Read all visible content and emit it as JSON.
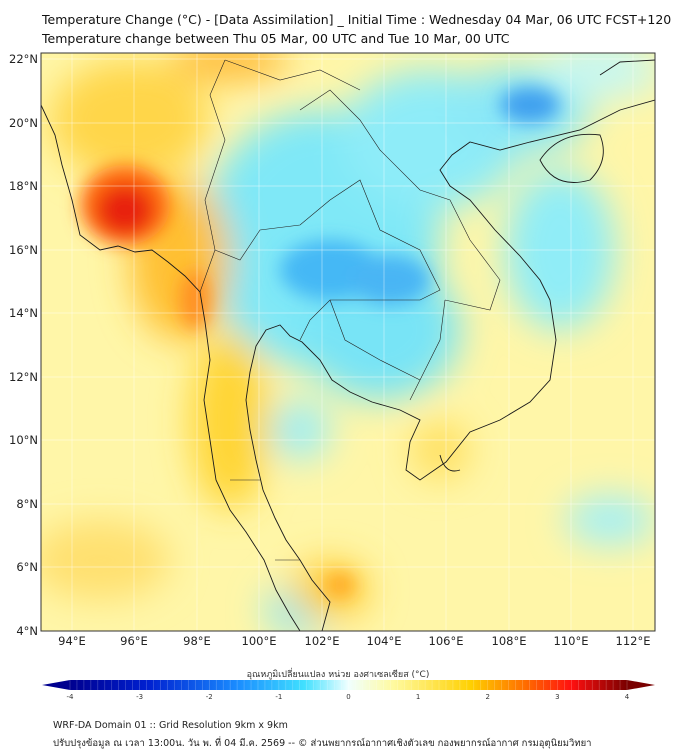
{
  "header": {
    "title_line1": "Temperature Change (°C) - [Data Assimilation] _ Initial Time : Wednesday 04 Mar, 06 UTC FCST+120",
    "title_line2": "Temperature change between Thu 05 Mar, 00 UTC and Tue 10 Mar, 00 UTC"
  },
  "map": {
    "lat_labels": [
      "22°N",
      "20°N",
      "18°N",
      "16°N",
      "14°N",
      "12°N",
      "10°N",
      "8°N",
      "6°N",
      "4°N"
    ],
    "lat_values": [
      22,
      20,
      18,
      16,
      14,
      12,
      10,
      8,
      6,
      4
    ],
    "lon_labels": [
      "94°E",
      "96°E",
      "98°E",
      "100°E",
      "102°E",
      "104°E",
      "106°E",
      "108°E",
      "110°E",
      "112°E"
    ],
    "lon_values": [
      94,
      96,
      98,
      100,
      102,
      104,
      106,
      108,
      110,
      112
    ],
    "field_colors": {
      "cold": "#3fa9f5",
      "cool": "#5fe3f5",
      "neutral": "#fff7b0",
      "warm": "#ffd21a",
      "hot": "#e82a10"
    }
  },
  "colorbar": {
    "label": "อุณหภูมิเปลี่ยนแปลง หน่วย องศาเซลเซียส (°C)",
    "ticks": [
      "-4",
      "-3",
      "-2",
      "-1",
      "0",
      "1",
      "2",
      "3",
      "4"
    ],
    "min": -4,
    "max": 4
  },
  "footer": {
    "line1": "WRF-DA Domain 01 :: Grid Resolution 9km x 9km",
    "line2": "ปรับปรุงข้อมูล ณ เวลา 13:00น. วัน พ. ที่ 04 มี.ค. 2569 -- © ส่วนพยากรณ์อากาศเชิงตัวเลข กองพยากรณ์อากาศ กรมอุตุนิยมวิทยา"
  }
}
